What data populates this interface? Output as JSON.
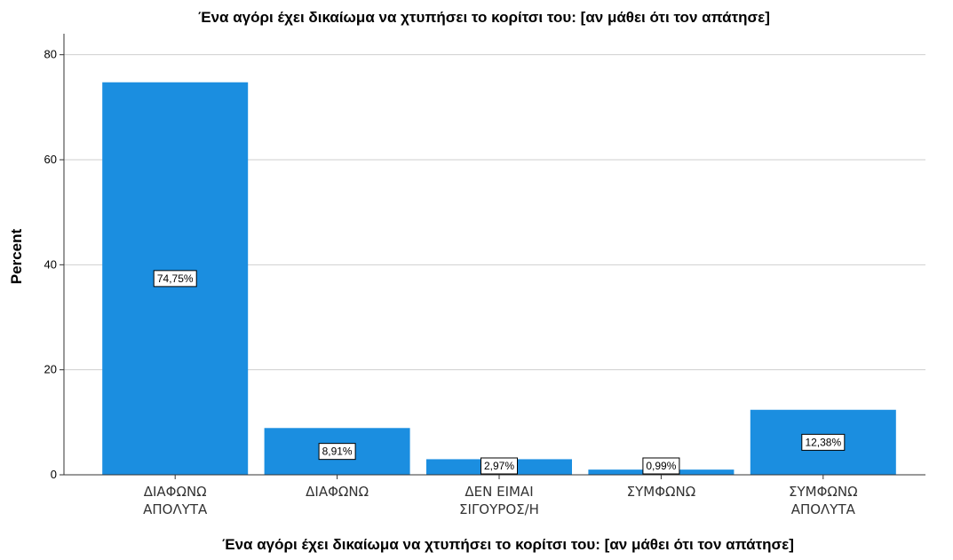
{
  "chart_data": {
    "type": "bar",
    "title": "Ένα αγόρι έχει δικαίωμα να χτυπήσει το κορίτσι του: [αν μάθει ότι τον απάτησε]",
    "xlabel": "Ένα αγόρι έχει δικαίωμα να χτυπήσει το κορίτσι του: [αν μάθει ότι τον απάτησε]",
    "ylabel": "Percent",
    "categories": [
      [
        "ΔΙΑΦΩΝΩ",
        "ΑΠΟΛΥΤΑ"
      ],
      [
        "ΔΙΑΦΩΝΩ"
      ],
      [
        "ΔΕΝ ΕΙΜΑΙ",
        "ΣΙΓΟΥΡΟΣ/Η"
      ],
      [
        "ΣΥΜΦΩΝΩ"
      ],
      [
        "ΣΥΜΦΩΝΩ",
        "ΑΠΟΛΥΤΑ"
      ]
    ],
    "values": [
      74.75,
      8.91,
      2.97,
      0.99,
      12.38
    ],
    "data_labels": [
      "74,75%",
      "8,91%",
      "2,97%",
      "0,99%",
      "12,38%"
    ],
    "ylim": [
      0,
      84
    ],
    "yticks": [
      0,
      20,
      40,
      60,
      80
    ],
    "grid": true,
    "bar_color": "#1b8ee0"
  }
}
